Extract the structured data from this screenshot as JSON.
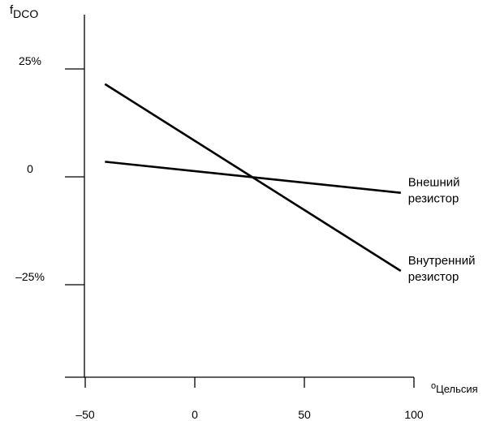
{
  "chart_data": {
    "type": "line",
    "ylabel": {
      "main": "f",
      "sub": "DCO"
    },
    "xlabel": {
      "degree": "o",
      "unit": "Цельсия"
    },
    "xlim": [
      -50,
      100
    ],
    "ylim": [
      -45,
      45
    ],
    "x_ticks": [
      {
        "value": -50,
        "label": "–50"
      },
      {
        "value": 0,
        "label": "0"
      },
      {
        "value": 50,
        "label": "50"
      },
      {
        "value": 100,
        "label": "100"
      }
    ],
    "y_ticks": [
      {
        "value": 25,
        "label": "25%"
      },
      {
        "value": 0,
        "label": "0"
      },
      {
        "value": -25,
        "label": "–25%"
      }
    ],
    "grid": false,
    "series": [
      {
        "name": [
          "Внешний",
          "резистор"
        ],
        "color": "#000000",
        "points": [
          [
            -41,
            3.5
          ],
          [
            94,
            -3.7
          ]
        ]
      },
      {
        "name": [
          "Внутренний",
          "резистор"
        ],
        "color": "#000000",
        "points": [
          [
            -41,
            21.5
          ],
          [
            94,
            -21.8
          ]
        ]
      }
    ]
  }
}
